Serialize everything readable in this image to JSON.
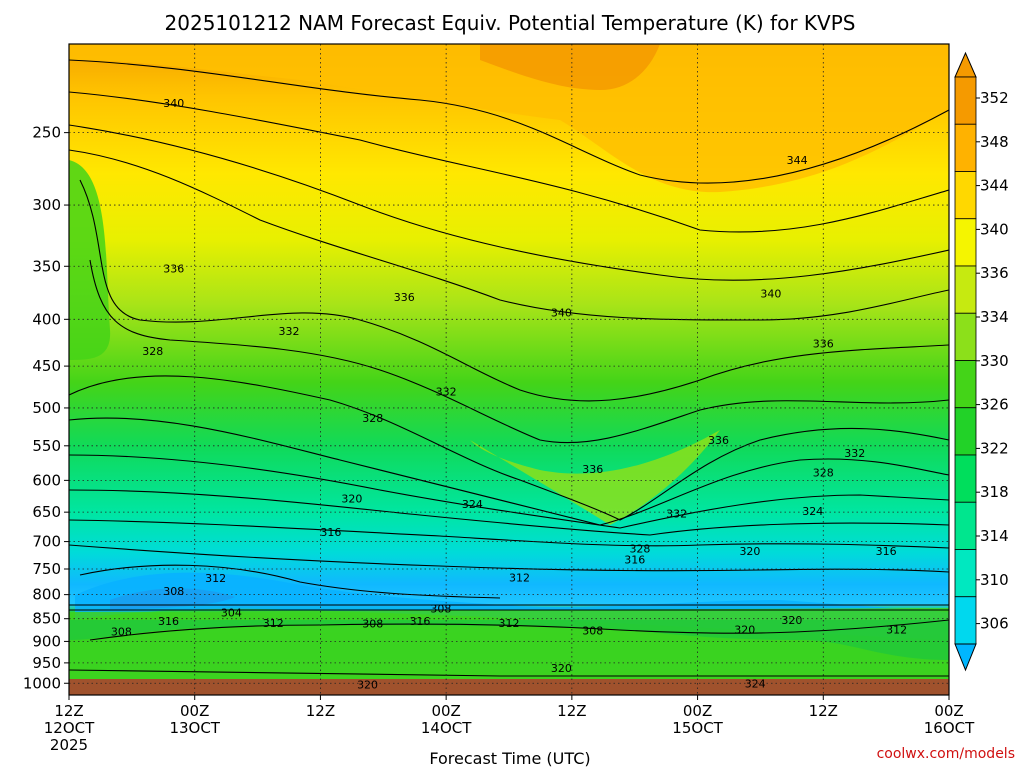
{
  "chart_data": {
    "type": "contour",
    "title": "2025101212 NAM Forecast Equiv. Potential Temperature (K) for KVPS",
    "xlabel": "Forecast Time (UTC)",
    "ylabel": "",
    "credit": "coolwx.com/models",
    "x_range_hours": [
      0,
      84
    ],
    "x_ticks": [
      {
        "hour": 0,
        "line1": "12Z",
        "line2": "12OCT",
        "line3": "2025"
      },
      {
        "hour": 12,
        "line1": "00Z",
        "line2": "13OCT",
        "line3": ""
      },
      {
        "hour": 24,
        "line1": "12Z",
        "line2": "",
        "line3": ""
      },
      {
        "hour": 36,
        "line1": "00Z",
        "line2": "14OCT",
        "line3": ""
      },
      {
        "hour": 48,
        "line1": "12Z",
        "line2": "",
        "line3": ""
      },
      {
        "hour": 60,
        "line1": "00Z",
        "line2": "15OCT",
        "line3": ""
      },
      {
        "hour": 72,
        "line1": "12Z",
        "line2": "",
        "line3": ""
      },
      {
        "hour": 84,
        "line1": "00Z",
        "line2": "16OCT",
        "line3": ""
      }
    ],
    "y_scale": "log-pressure",
    "y_range_hpa": [
      1030,
      200
    ],
    "y_ticks": [
      250,
      300,
      350,
      400,
      450,
      500,
      550,
      600,
      650,
      700,
      750,
      800,
      850,
      900,
      950,
      1000
    ],
    "colorbar": {
      "levels": [
        306,
        310,
        314,
        318,
        322,
        326,
        330,
        334,
        336,
        340,
        344,
        348,
        352
      ],
      "labels": [
        "352",
        "348",
        "344",
        "340",
        "336",
        "334",
        "330",
        "326",
        "322",
        "318",
        "314",
        "310",
        "306"
      ],
      "colors": [
        "#00b6ff",
        "#00d8ee",
        "#00e8c0",
        "#00e68e",
        "#00de5c",
        "#22d228",
        "#44d418",
        "#8ce01a",
        "#c6ea10",
        "#f5f500",
        "#ffd800",
        "#ffb200",
        "#f59a00"
      ]
    },
    "contour_labels": [
      {
        "text": "340",
        "hour": 10.0,
        "p": 232
      },
      {
        "text": "344",
        "hour": 69.5,
        "p": 268
      },
      {
        "text": "336",
        "hour": 10.0,
        "p": 352
      },
      {
        "text": "336",
        "hour": 32.0,
        "p": 378
      },
      {
        "text": "340",
        "hour": 47.0,
        "p": 393
      },
      {
        "text": "340",
        "hour": 67.0,
        "p": 375
      },
      {
        "text": "332",
        "hour": 21.0,
        "p": 412
      },
      {
        "text": "328",
        "hour": 8.0,
        "p": 433
      },
      {
        "text": "336",
        "hour": 72.0,
        "p": 425
      },
      {
        "text": "332",
        "hour": 36.0,
        "p": 480
      },
      {
        "text": "328",
        "hour": 29.0,
        "p": 513
      },
      {
        "text": "336",
        "hour": 62.0,
        "p": 542
      },
      {
        "text": "332",
        "hour": 75.0,
        "p": 560
      },
      {
        "text": "336",
        "hour": 50.0,
        "p": 583
      },
      {
        "text": "328",
        "hour": 72.0,
        "p": 588
      },
      {
        "text": "320",
        "hour": 27.0,
        "p": 628
      },
      {
        "text": "324",
        "hour": 38.5,
        "p": 637
      },
      {
        "text": "332",
        "hour": 58.0,
        "p": 652
      },
      {
        "text": "324",
        "hour": 71.0,
        "p": 648
      },
      {
        "text": "316",
        "hour": 25.0,
        "p": 683
      },
      {
        "text": "328",
        "hour": 54.5,
        "p": 712
      },
      {
        "text": "316",
        "hour": 54.0,
        "p": 732
      },
      {
        "text": "320",
        "hour": 65.0,
        "p": 717
      },
      {
        "text": "316",
        "hour": 78.0,
        "p": 717
      },
      {
        "text": "312",
        "hour": 14.0,
        "p": 767
      },
      {
        "text": "312",
        "hour": 43.0,
        "p": 766
      },
      {
        "text": "308",
        "hour": 10.0,
        "p": 793
      },
      {
        "text": "308",
        "hour": 35.5,
        "p": 828
      },
      {
        "text": "304",
        "hour": 15.5,
        "p": 837
      },
      {
        "text": "316",
        "hour": 9.5,
        "p": 855
      },
      {
        "text": "312",
        "hour": 19.5,
        "p": 859
      },
      {
        "text": "308",
        "hour": 29.0,
        "p": 860
      },
      {
        "text": "316",
        "hour": 33.5,
        "p": 855
      },
      {
        "text": "312",
        "hour": 42.0,
        "p": 859
      },
      {
        "text": "308",
        "hour": 50.0,
        "p": 876
      },
      {
        "text": "320",
        "hour": 69.0,
        "p": 853
      },
      {
        "text": "320",
        "hour": 64.5,
        "p": 873
      },
      {
        "text": "312",
        "hour": 79.0,
        "p": 873
      },
      {
        "text": "308",
        "hour": 5.0,
        "p": 878
      },
      {
        "text": "320",
        "hour": 47.0,
        "p": 962
      },
      {
        "text": "320",
        "hour": 28.5,
        "p": 1003
      },
      {
        "text": "324",
        "hour": 65.5,
        "p": 1001
      }
    ]
  }
}
